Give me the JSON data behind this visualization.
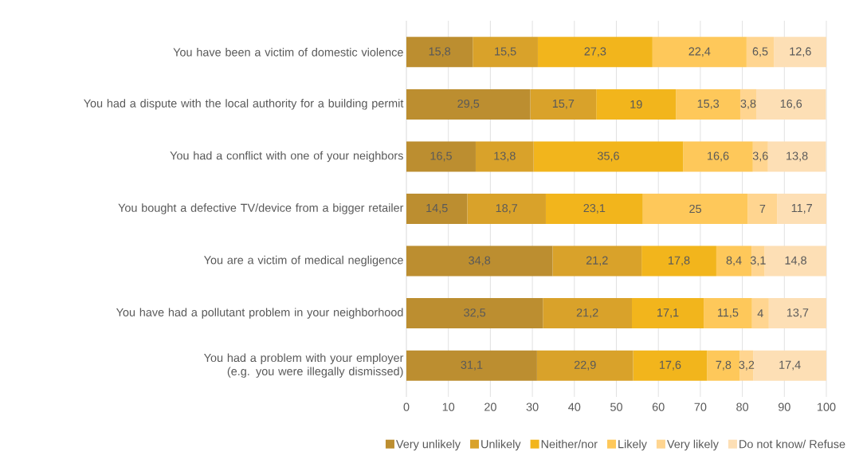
{
  "chart_data": {
    "type": "bar",
    "orientation": "horizontal",
    "stacked": true,
    "categories": [
      "You have been a victim of domestic violence",
      "You had a dispute with the local authority for a building permit",
      "You had a conflict with one of your neighbors",
      "You bought a defective TV/device from a bigger retailer",
      "You are a victim of medical negligence",
      "You have had a pollutant problem in your neighborhood",
      "You had a problem with your employer (e.g. you were illegally dismissed)"
    ],
    "series": [
      {
        "name": "Very unlikely",
        "color": "#bc8e30",
        "values": [
          15.8,
          29.5,
          16.5,
          14.5,
          34.8,
          32.5,
          31.1
        ],
        "value_labels": [
          "15,8",
          "29,5",
          "16,5",
          "14,5",
          "34,8",
          "32,5",
          "31,1"
        ]
      },
      {
        "name": "Unlikely",
        "color": "#d9a22a",
        "values": [
          15.5,
          15.7,
          13.8,
          18.7,
          21.2,
          21.2,
          22.9
        ],
        "value_labels": [
          "15,5",
          "15,7",
          "13,8",
          "18,7",
          "21,2",
          "21,2",
          "22,9"
        ]
      },
      {
        "name": "Neither/nor",
        "color": "#f2b51c",
        "values": [
          27.3,
          19,
          35.6,
          23.1,
          17.8,
          17.1,
          17.6
        ],
        "value_labels": [
          "27,3",
          "19",
          "35,6",
          "23,1",
          "17,8",
          "17,1",
          "17,6"
        ]
      },
      {
        "name": "Likely",
        "color": "#fec85a",
        "values": [
          22.4,
          15.3,
          16.6,
          25,
          8.4,
          11.5,
          7.8
        ],
        "value_labels": [
          "22,4",
          "15,3",
          "16,6",
          "25",
          "8,4",
          "11,5",
          "7,8"
        ]
      },
      {
        "name": "Very likely",
        "color": "#ffd590",
        "values": [
          6.5,
          3.8,
          3.6,
          7,
          3.1,
          4,
          3.2
        ],
        "value_labels": [
          "6,5",
          "3,8",
          "3,6",
          "7",
          "3,1",
          "4",
          "3,2"
        ]
      },
      {
        "name": "Do not know/ Refuse",
        "color": "#fddfb5",
        "values": [
          12.6,
          16.6,
          13.8,
          11.7,
          14.8,
          13.7,
          17.4
        ],
        "value_labels": [
          "12,6",
          "16,6",
          "13,8",
          "11,7",
          "14,8",
          "13,7",
          "17,4"
        ]
      }
    ],
    "xlim": [
      0,
      100
    ],
    "xticks": [
      0,
      10,
      20,
      30,
      40,
      50,
      60,
      70,
      80,
      90,
      100
    ],
    "grid": "x",
    "legend": "bottom"
  }
}
